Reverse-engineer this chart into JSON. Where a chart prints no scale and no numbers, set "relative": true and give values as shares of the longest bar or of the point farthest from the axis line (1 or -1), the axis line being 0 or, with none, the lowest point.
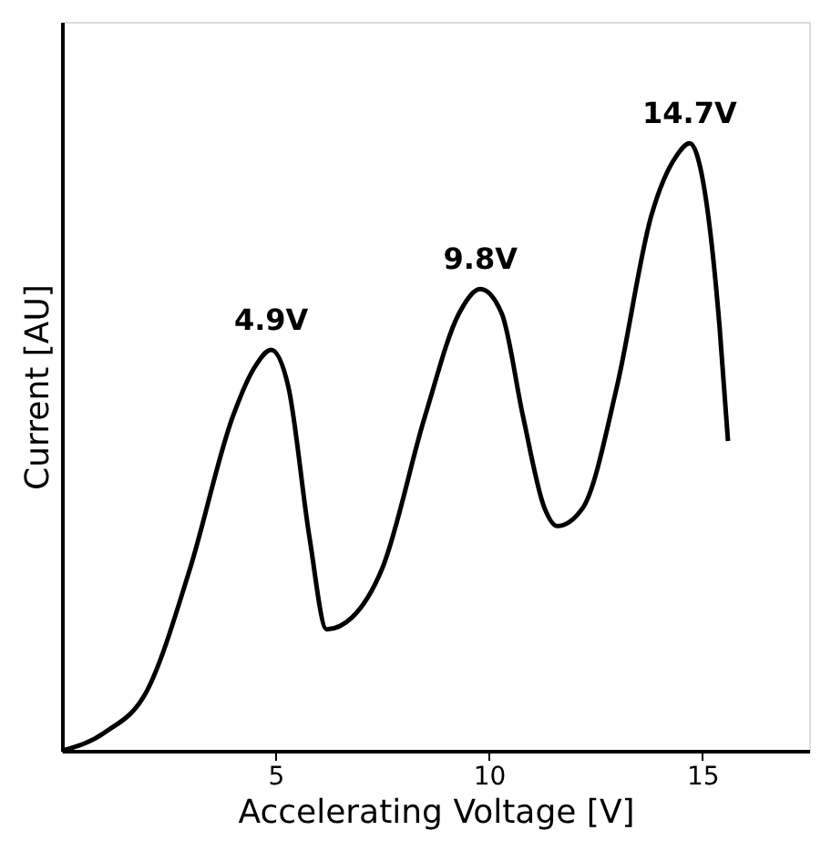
{
  "chart_data": {
    "type": "line",
    "relative": true,
    "xlabel": "Accelerating Voltage [V]",
    "ylabel": "Current [AU]",
    "xlim": [
      0,
      17.5
    ],
    "xticks": [
      5,
      10,
      15
    ],
    "grid": false,
    "marker": "none",
    "line_style": "solid",
    "series": [
      {
        "color": "#000000",
        "x": [
          0,
          1,
          2,
          3,
          4,
          4.5,
          4.9,
          5.3,
          5.8,
          6.2,
          6.8,
          7.5,
          8.5,
          9.3,
          9.8,
          10.3,
          10.8,
          11.3,
          11.6,
          12.2,
          13,
          13.8,
          14.4,
          14.7,
          15.1,
          15.4,
          15.6
        ],
        "values": [
          0,
          0.03,
          0.1,
          0.3,
          0.55,
          0.63,
          0.66,
          0.6,
          0.35,
          0.2,
          0.22,
          0.3,
          0.55,
          0.72,
          0.76,
          0.72,
          0.55,
          0.4,
          0.37,
          0.4,
          0.6,
          0.88,
          0.98,
          1.0,
          0.9,
          0.7,
          0.51
        ]
      }
    ],
    "annotations": [
      {
        "text": "4.9V",
        "x": 4.9,
        "y": 0.66
      },
      {
        "text": "9.8V",
        "x": 9.8,
        "y": 0.76
      },
      {
        "text": "14.7V",
        "x": 14.7,
        "y": 1.0
      }
    ]
  }
}
